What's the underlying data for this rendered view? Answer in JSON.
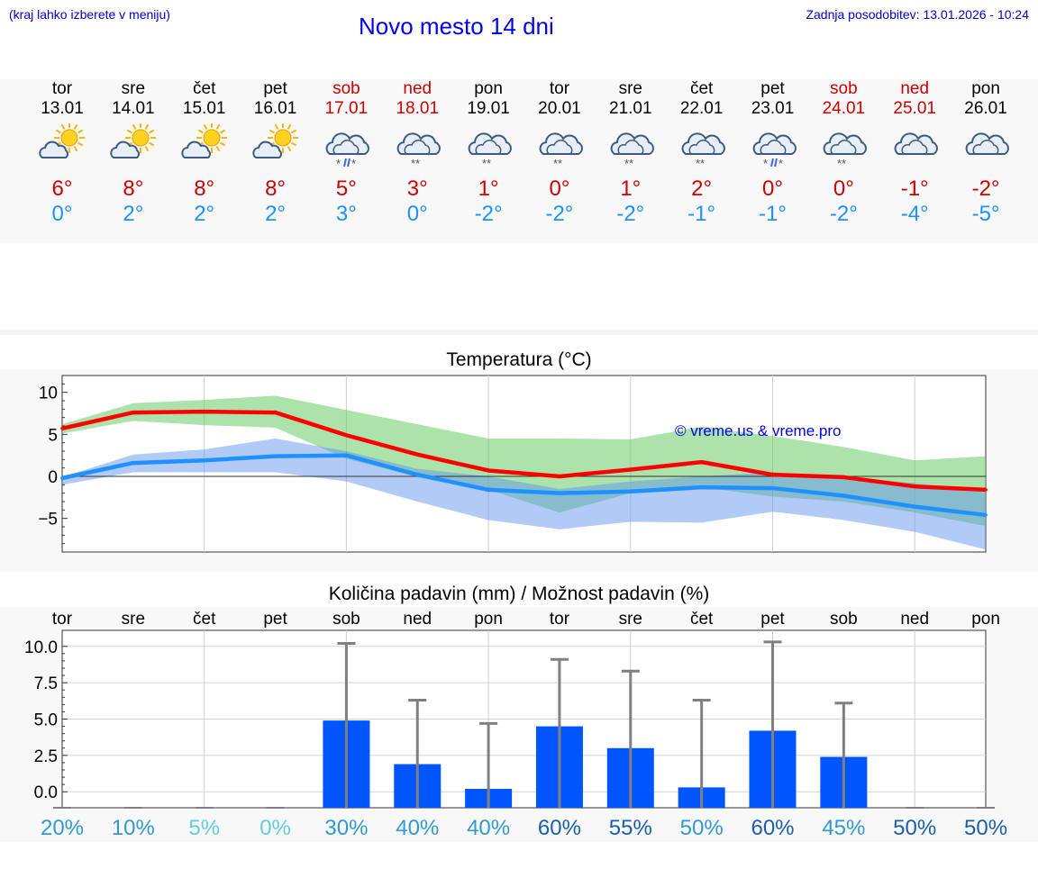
{
  "header": {
    "hint": "(kraj lahko izberete v meniju)",
    "title": "Novo mesto 14 dni",
    "updated": "Zadnja posodobitev: 13.01.2026 - 10:24"
  },
  "days": [
    {
      "name": "tor",
      "date": "13.01",
      "icon": "sun-cloud-icon",
      "tmax": "6°",
      "tmin": "0°",
      "weekend": false
    },
    {
      "name": "sre",
      "date": "14.01",
      "icon": "sun-cloud-icon",
      "tmax": "8°",
      "tmin": "2°",
      "weekend": false
    },
    {
      "name": "čet",
      "date": "15.01",
      "icon": "sun-cloud-icon",
      "tmax": "8°",
      "tmin": "2°",
      "weekend": false
    },
    {
      "name": "pet",
      "date": "16.01",
      "icon": "sun-cloud-icon",
      "tmax": "8°",
      "tmin": "2°",
      "weekend": false
    },
    {
      "name": "sob",
      "date": "17.01",
      "icon": "cloud-sleet-icon",
      "tmax": "5°",
      "tmin": "3°",
      "weekend": true
    },
    {
      "name": "ned",
      "date": "18.01",
      "icon": "cloud-snow-icon",
      "tmax": "3°",
      "tmin": "0°",
      "weekend": true
    },
    {
      "name": "pon",
      "date": "19.01",
      "icon": "cloud-snow-icon",
      "tmax": "1°",
      "tmin": "-2°",
      "weekend": false
    },
    {
      "name": "tor",
      "date": "20.01",
      "icon": "cloud-snow-icon",
      "tmax": "0°",
      "tmin": "-2°",
      "weekend": false
    },
    {
      "name": "sre",
      "date": "21.01",
      "icon": "cloud-snow-icon",
      "tmax": "1°",
      "tmin": "-2°",
      "weekend": false
    },
    {
      "name": "čet",
      "date": "22.01",
      "icon": "cloud-snow-icon",
      "tmax": "2°",
      "tmin": "-1°",
      "weekend": false
    },
    {
      "name": "pet",
      "date": "23.01",
      "icon": "cloud-sleet-icon",
      "tmax": "0°",
      "tmin": "-1°",
      "weekend": false
    },
    {
      "name": "sob",
      "date": "24.01",
      "icon": "cloud-snow-icon",
      "tmax": "0°",
      "tmin": "-2°",
      "weekend": true
    },
    {
      "name": "ned",
      "date": "25.01",
      "icon": "cloud-icon",
      "tmax": "-1°",
      "tmin": "-4°",
      "weekend": true
    },
    {
      "name": "pon",
      "date": "26.01",
      "icon": "cloud-icon",
      "tmax": "-2°",
      "tmin": "-5°",
      "weekend": false
    }
  ],
  "colors": {
    "max_line": "#ff0000",
    "min_line": "#1e90ff",
    "max_band": "#66cc66",
    "min_band": "#6495ed",
    "bar": "#0055ff",
    "whisker": "#808080",
    "weekend": "#cc0000",
    "title": "#0000ee"
  },
  "chart_data": [
    {
      "type": "line",
      "title": "Temperatura (°C)",
      "watermark": "© vreme.us & vreme.pro",
      "ylim": [
        -9,
        12
      ],
      "yticks": [
        10,
        5,
        0,
        -5
      ],
      "ytick_labels": [
        "10",
        "5",
        "0",
        "−5"
      ],
      "x": [
        0,
        1,
        2,
        3,
        4,
        5,
        6,
        7,
        8,
        9,
        10,
        11,
        12,
        13
      ],
      "series": [
        {
          "name": "max",
          "values": [
            5.7,
            7.6,
            7.7,
            7.6,
            4.9,
            2.6,
            0.7,
            0.0,
            0.8,
            1.7,
            0.2,
            -0.1,
            -1.2,
            -1.6
          ]
        },
        {
          "name": "min",
          "values": [
            -0.2,
            1.6,
            1.9,
            2.4,
            2.5,
            0.2,
            -1.6,
            -2.0,
            -1.8,
            -1.3,
            -1.4,
            -2.3,
            -3.6,
            -4.6
          ]
        }
      ],
      "bands": [
        {
          "name": "max-range",
          "upper": [
            6.2,
            8.7,
            9.1,
            9.6,
            7.9,
            6.2,
            4.5,
            4.5,
            4.4,
            5.9,
            4.8,
            3.5,
            1.9,
            2.4
          ],
          "lower": [
            5.1,
            6.6,
            6.1,
            5.8,
            2.1,
            -0.1,
            -1.6,
            -4.3,
            -2.0,
            -1.3,
            -2.4,
            -3.0,
            -4.3,
            -5.9
          ]
        },
        {
          "name": "min-range",
          "upper": [
            -0.1,
            2.6,
            3.2,
            4.5,
            3.0,
            0.9,
            0.0,
            -1.5,
            -0.6,
            0.0,
            0.5,
            -0.1,
            -0.8,
            -1.9
          ],
          "lower": [
            -1.0,
            0.5,
            0.5,
            0.5,
            -0.6,
            -3.0,
            -5.2,
            -6.3,
            -5.4,
            -5.5,
            -4.2,
            -5.2,
            -6.6,
            -8.7
          ]
        }
      ]
    },
    {
      "type": "bar",
      "title": "Količina padavin (mm) / Možnost padavin (%)",
      "categories": [
        "tor",
        "sre",
        "čet",
        "pet",
        "sob",
        "ned",
        "pon",
        "tor",
        "sre",
        "čet",
        "pet",
        "sob",
        "ned",
        "pon"
      ],
      "ylim": [
        -1.1,
        11.1
      ],
      "yticks": [
        10,
        7.5,
        5,
        2.5,
        0
      ],
      "ytick_labels": [
        "10.0",
        "7.5",
        "5.0",
        "2.5",
        "0.0"
      ],
      "values": [
        0,
        0,
        0,
        0,
        4.9,
        1.9,
        0.2,
        4.5,
        3.0,
        0.3,
        4.2,
        2.4,
        0,
        0
      ],
      "max_values": [
        0,
        0,
        0,
        0,
        10.2,
        6.3,
        4.7,
        9.1,
        8.3,
        6.3,
        10.3,
        6.1,
        0,
        0
      ],
      "probabilities": [
        "20%",
        "10%",
        "5%",
        "0%",
        "30%",
        "40%",
        "40%",
        "60%",
        "55%",
        "50%",
        "60%",
        "45%",
        "50%",
        "50%"
      ],
      "probability_colors": [
        "#3399cc",
        "#3399cc",
        "#66ccdd",
        "#66ccdd",
        "#3399cc",
        "#3399cc",
        "#3399cc",
        "#1a5fa8",
        "#1a5fa8",
        "#3399cc",
        "#1a5fa8",
        "#3399cc",
        "#1a5fa8",
        "#1a5fa8"
      ]
    }
  ]
}
